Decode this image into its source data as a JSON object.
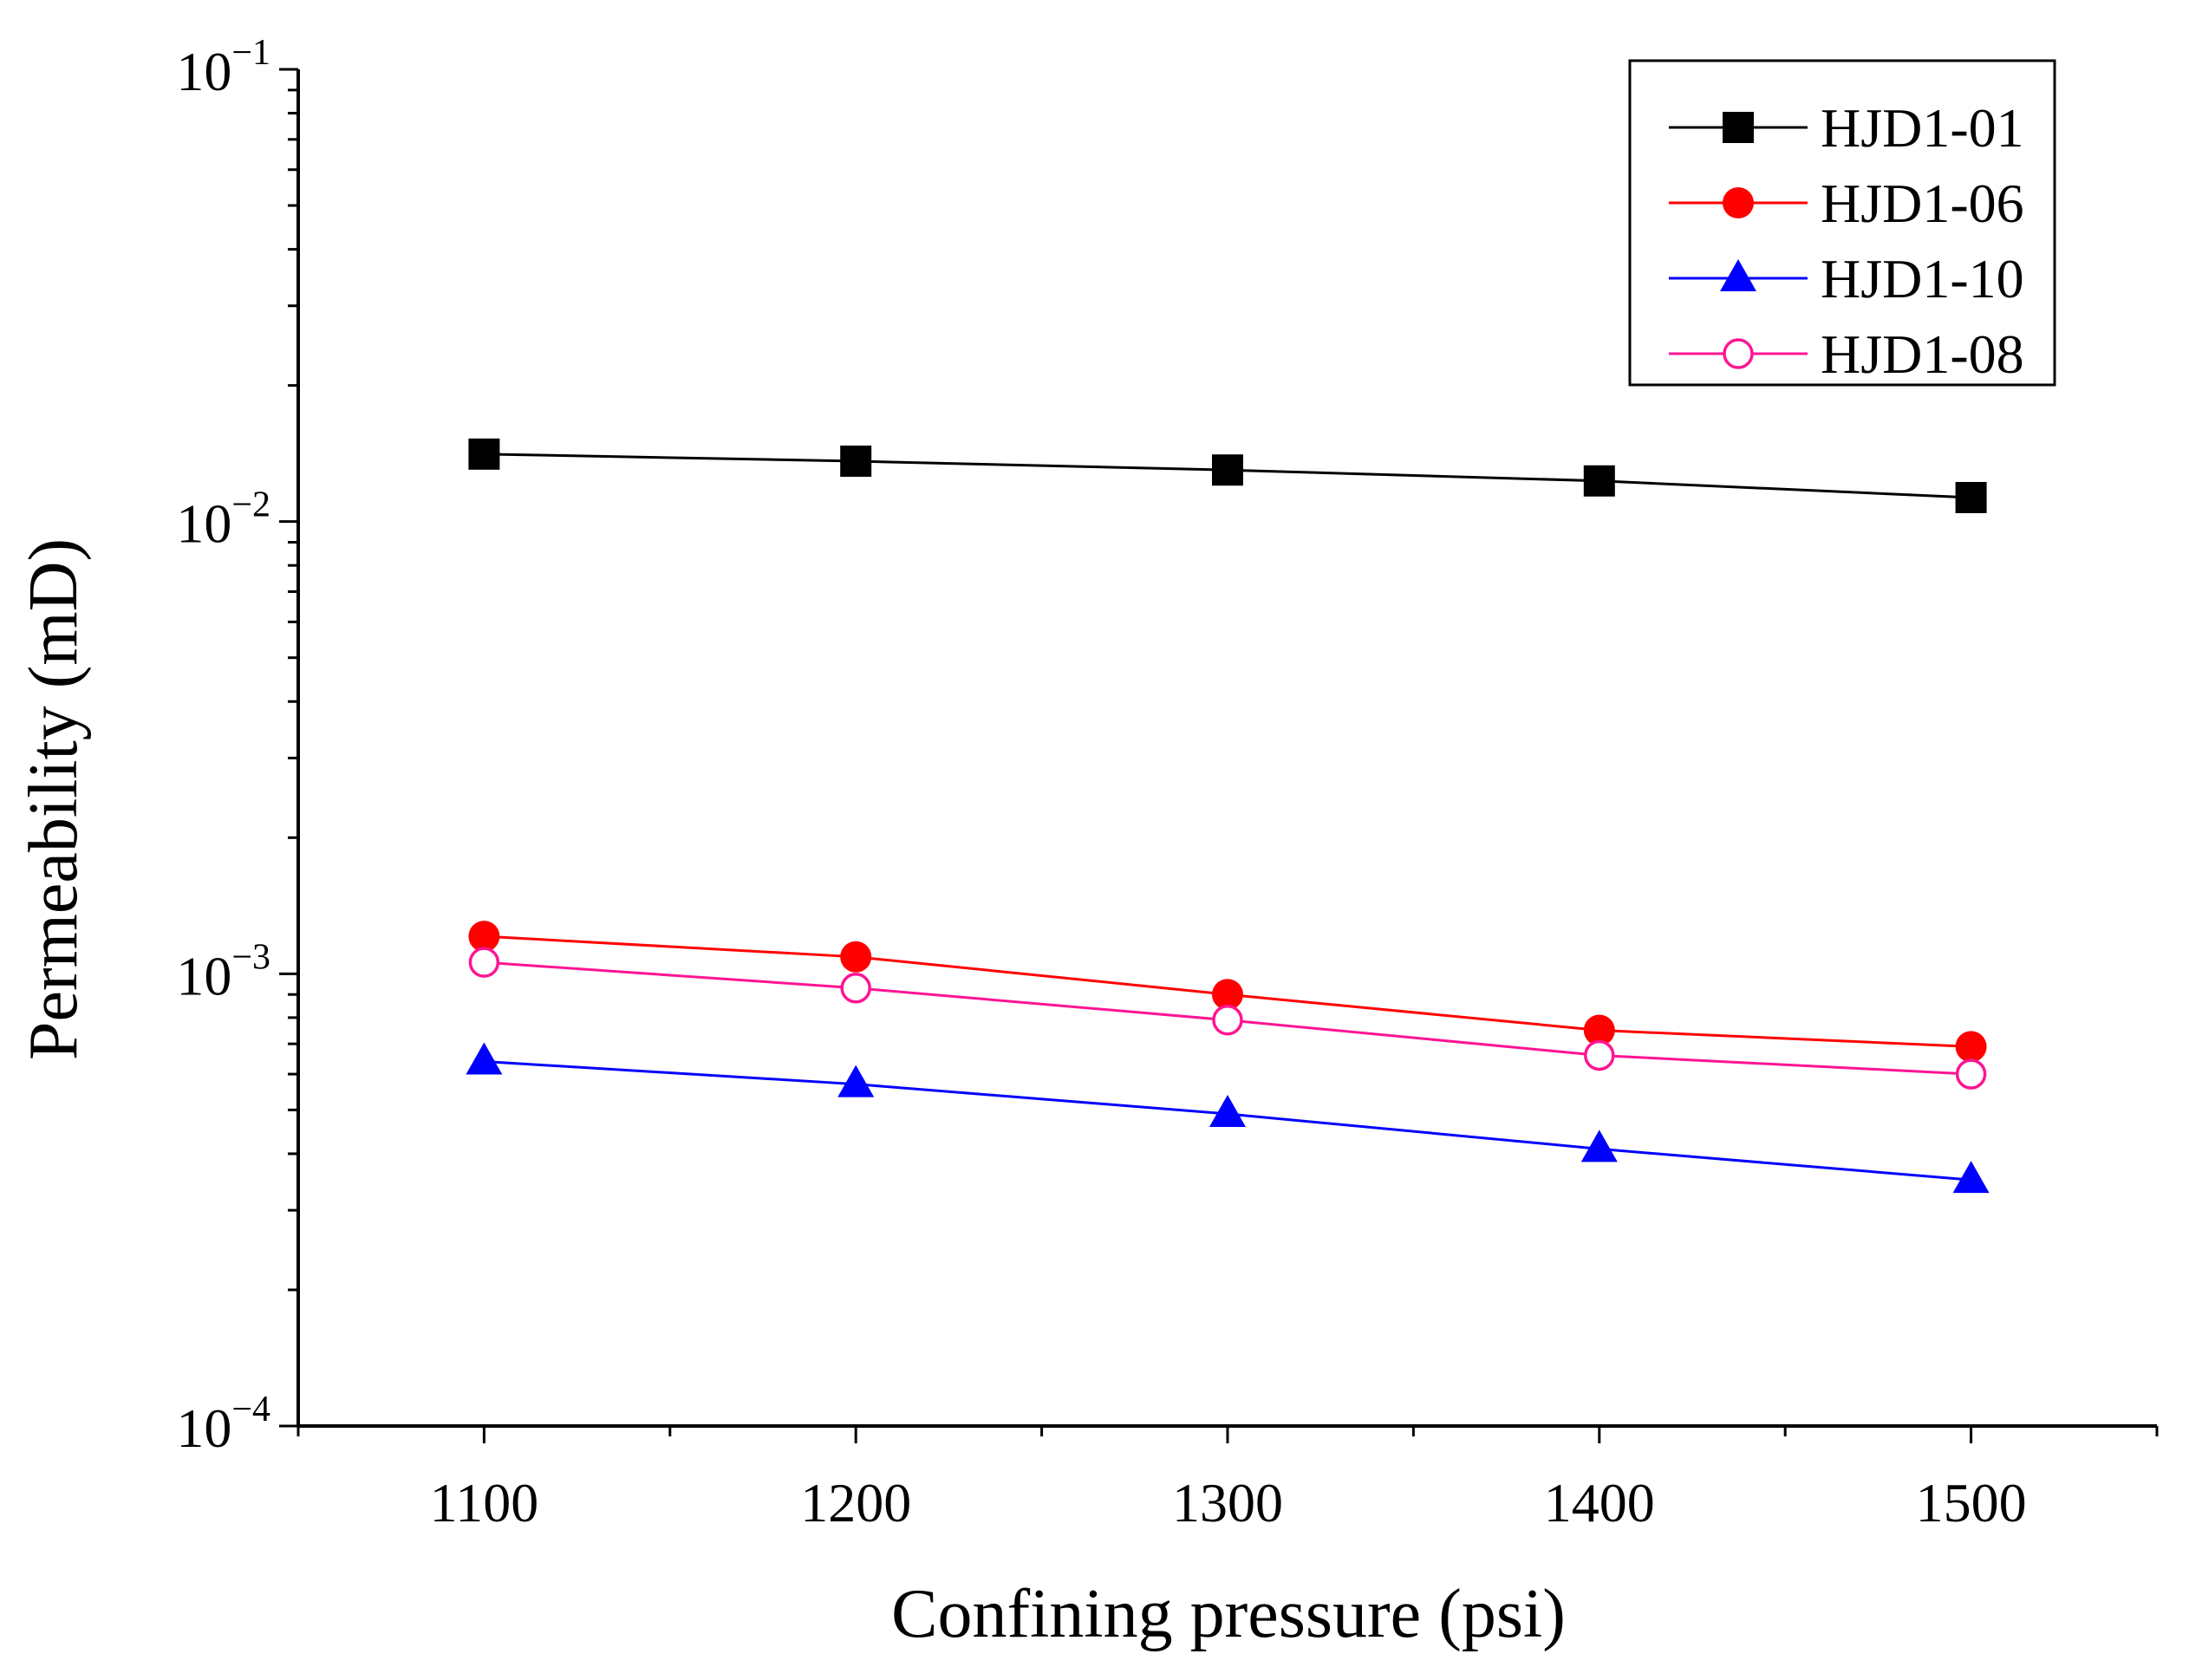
{
  "chart_data": {
    "type": "line",
    "title": "",
    "xlabel": "Confining pressure (psi)",
    "ylabel": "Permeability (mD)",
    "y_scale": "log",
    "xlim": [
      1050,
      1550
    ],
    "ylim": [
      0.0001,
      0.1
    ],
    "x_ticks": [
      1100,
      1200,
      1300,
      1400,
      1500
    ],
    "x_tick_labels": [
      "1100",
      "1200",
      "1300",
      "1400",
      "1500"
    ],
    "y_ticks": [
      0.0001,
      0.001,
      0.01,
      0.1
    ],
    "y_tick_labels": [
      {
        "base": "10",
        "exp": "−4"
      },
      {
        "base": "10",
        "exp": "−3"
      },
      {
        "base": "10",
        "exp": "−2"
      },
      {
        "base": "10",
        "exp": "−1"
      }
    ],
    "x": [
      1100,
      1200,
      1300,
      1400,
      1500
    ],
    "legend_position": "top-right",
    "series": [
      {
        "name": "HJD1-01",
        "color": "#000000",
        "marker": "square",
        "values": [
          0.0141,
          0.0136,
          0.013,
          0.0123,
          0.0113
        ]
      },
      {
        "name": "HJD1-06",
        "color": "#ff0000",
        "marker": "circle",
        "values": [
          0.00121,
          0.00109,
          0.0009,
          0.00075,
          0.00069
        ]
      },
      {
        "name": "HJD1-10",
        "color": "#0000ff",
        "marker": "triangle",
        "values": [
          0.00064,
          0.00057,
          0.00049,
          0.00041,
          0.00035
        ]
      },
      {
        "name": "HJD1-08",
        "color": "#ff1493",
        "marker": "open-circle",
        "values": [
          0.00106,
          0.00093,
          0.00079,
          0.00066,
          0.0006
        ]
      }
    ]
  }
}
